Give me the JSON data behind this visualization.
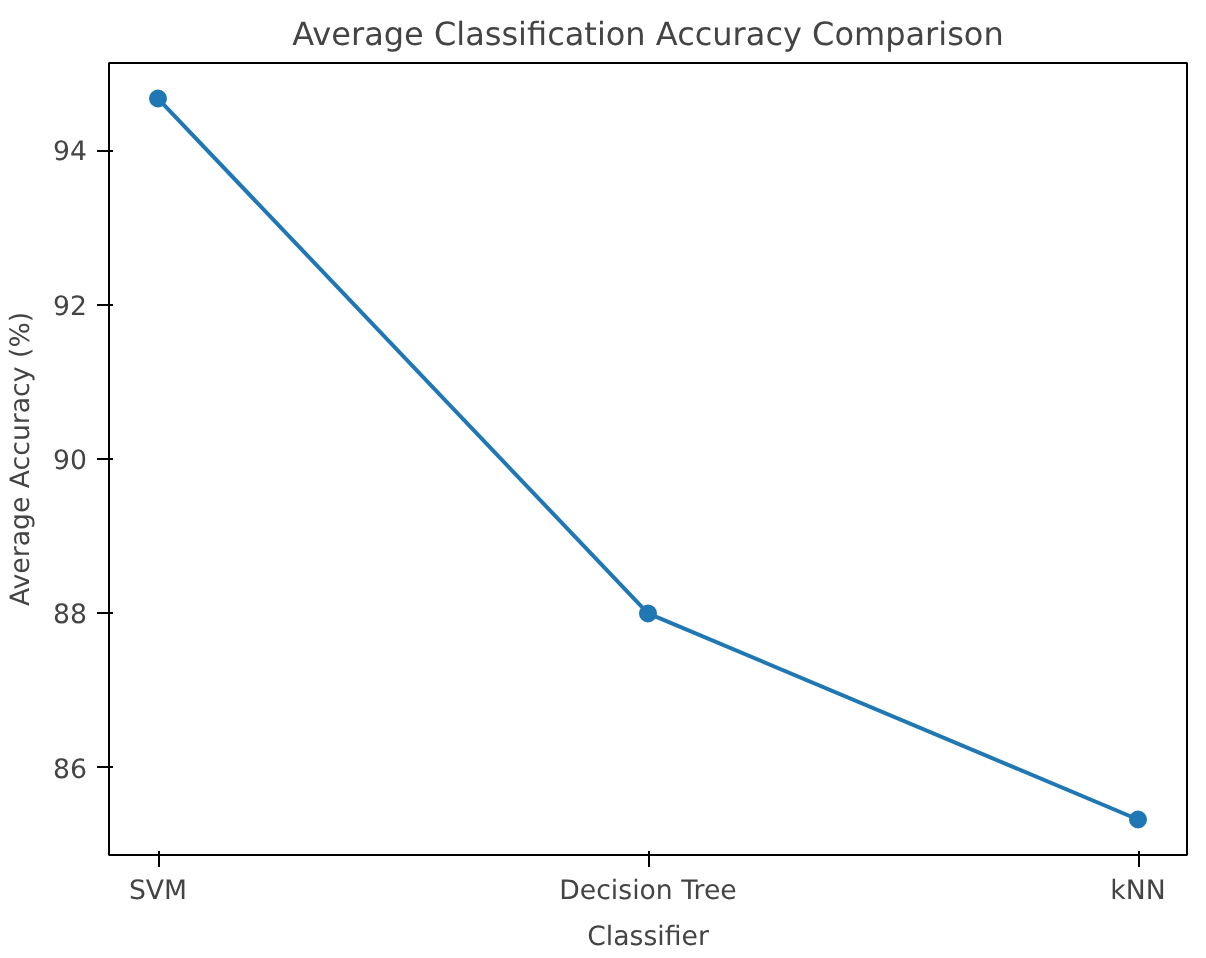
{
  "chart_data": {
    "type": "line",
    "title": "Average Classification Accuracy Comparison",
    "xlabel": "Classifier",
    "ylabel": "Average Accuracy (%)",
    "categories": [
      "SVM",
      "Decision Tree",
      "kNN"
    ],
    "series": [
      {
        "color": "#1f77b4",
        "values": [
          94.67,
          88.0,
          85.33
        ]
      }
    ],
    "ylim": [
      84.87,
      95.13
    ],
    "yticks": [
      86,
      88,
      90,
      92,
      94
    ],
    "grid": false,
    "marker": "circle",
    "line_style": "solid"
  }
}
